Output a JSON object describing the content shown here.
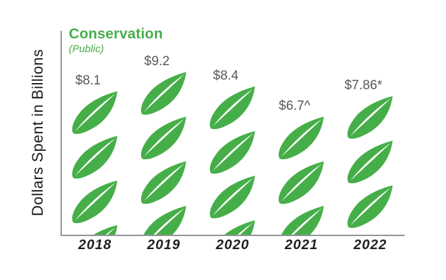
{
  "chart_data": {
    "type": "bar",
    "variant": "pictograph",
    "icon": "leaf-icon",
    "title": "Conservation",
    "subtitle": "(Public)",
    "ylabel": "Dollars Spent in Billions",
    "categories": [
      "2018",
      "2019",
      "2020",
      "2021",
      "2022"
    ],
    "values": [
      8.1,
      9.2,
      8.4,
      6.7,
      7.86
    ],
    "value_labels": [
      "$8.1",
      "$9.2",
      "$8.4",
      "$6.7^",
      "$7.86*"
    ],
    "grid": false,
    "legend": false,
    "colors": {
      "leaf": "#46ae49",
      "title": "#46ae49",
      "subtitle": "#46ae49",
      "axis": "#919396",
      "value_label": "#56575a",
      "year_label": "#231f20",
      "ylabel": "#1a1a1a"
    }
  }
}
